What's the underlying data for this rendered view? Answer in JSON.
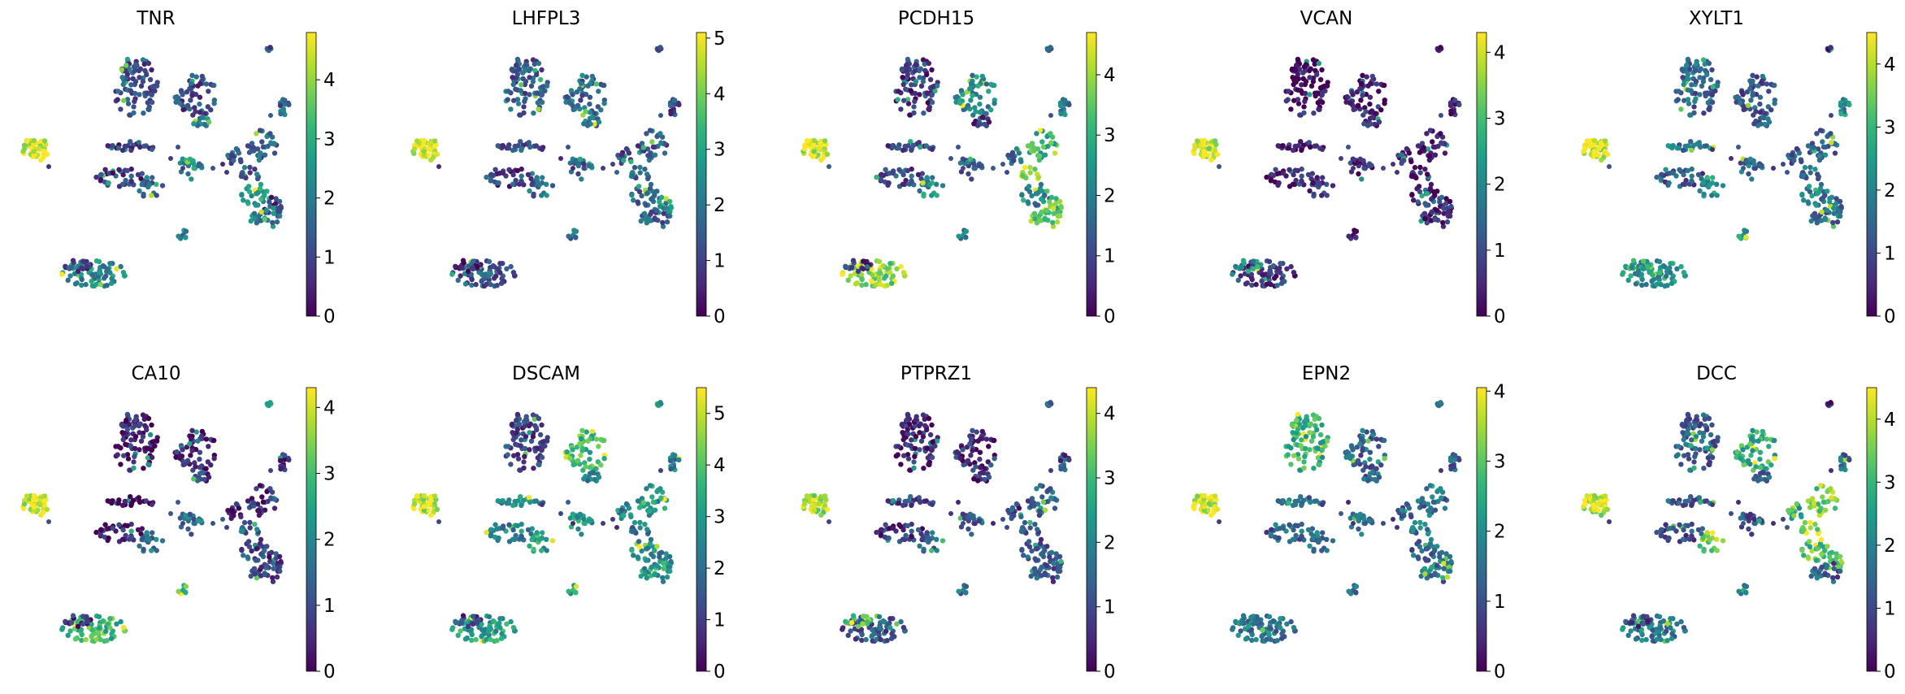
{
  "chart_data": [
    {
      "type": "scatter",
      "title": "TNR",
      "colorbar": {
        "min": 0,
        "max": 4.8,
        "ticks": [
          0,
          1,
          2,
          3,
          4
        ]
      },
      "cluster_values": [
        1.2,
        1.1,
        2.0,
        1.5,
        1.4,
        0.9,
        0.8,
        1.7,
        2.3,
        1.3,
        2.6,
        0.9,
        2.0,
        1.6,
        4.6,
        1.3,
        2.2,
        2.3,
        1.0
      ]
    },
    {
      "type": "scatter",
      "title": "LHFPL3",
      "colorbar": {
        "min": 0,
        "max": 5.1,
        "ticks": [
          0,
          1,
          2,
          3,
          4,
          5
        ]
      },
      "cluster_values": [
        1.5,
        1.8,
        2.0,
        1.4,
        1.5,
        1.2,
        1.0,
        1.8,
        1.6,
        1.2,
        1.7,
        2.6,
        1.6,
        1.1,
        4.9,
        1.5,
        1.7,
        1.4,
        0.3
      ]
    },
    {
      "type": "scatter",
      "title": "PCDH15",
      "colorbar": {
        "min": 0,
        "max": 4.7,
        "ticks": [
          0,
          1,
          2,
          3,
          4
        ]
      },
      "cluster_values": [
        0.8,
        2.2,
        0.9,
        3.0,
        4.2,
        1.0,
        1.1,
        2.4,
        1.5,
        1.6,
        1.9,
        3.2,
        3.8,
        1.9,
        4.4,
        1.2,
        2.3,
        3.9,
        0.7
      ]
    },
    {
      "type": "scatter",
      "title": "VCAN",
      "colorbar": {
        "min": 0,
        "max": 4.3,
        "ticks": [
          0,
          1,
          2,
          3,
          4
        ]
      },
      "cluster_values": [
        0.1,
        0.4,
        0.8,
        0.2,
        0.3,
        0.4,
        0.3,
        0.7,
        0.5,
        0.5,
        0.5,
        0.4,
        0.4,
        0.3,
        3.8,
        0.4,
        0.2,
        0.8,
        2.3
      ]
    },
    {
      "type": "scatter",
      "title": "XYLT1",
      "colorbar": {
        "min": 0,
        "max": 4.5,
        "ticks": [
          0,
          1,
          2,
          3,
          4
        ]
      },
      "cluster_values": [
        1.5,
        1.2,
        1.3,
        1.6,
        1.6,
        1.8,
        1.1,
        2.3,
        1.5,
        1.4,
        1.9,
        1.7,
        1.6,
        2.2,
        4.2,
        0.8,
        2.6,
        2.4,
        2.6
      ]
    },
    {
      "type": "scatter",
      "title": "CA10",
      "colorbar": {
        "min": 0,
        "max": 4.3,
        "ticks": [
          0,
          1,
          2,
          3,
          4
        ]
      },
      "cluster_values": [
        0.4,
        0.4,
        0.8,
        0.5,
        1.3,
        0.3,
        0.3,
        1.7,
        1.6,
        0.6,
        0.9,
        0.8,
        0.9,
        0.4,
        4.0,
        2.1,
        3.1,
        2.9,
        0.5
      ]
    },
    {
      "type": "scatter",
      "title": "DSCAM",
      "colorbar": {
        "min": 0,
        "max": 5.5,
        "ticks": [
          0,
          1,
          2,
          3,
          4,
          5
        ]
      },
      "cluster_values": [
        1.2,
        3.8,
        2.6,
        2.8,
        2.2,
        2.4,
        2.4,
        3.1,
        2.9,
        2.5,
        2.8,
        2.5,
        2.9,
        2.4,
        5.1,
        3.4,
        3.0,
        3.1,
        1.1
      ]
    },
    {
      "type": "scatter",
      "title": "PTPRZ1",
      "colorbar": {
        "min": 0,
        "max": 4.4,
        "ticks": [
          0,
          1,
          2,
          3,
          4
        ]
      },
      "cluster_values": [
        0.5,
        0.6,
        0.5,
        1.4,
        1.4,
        1.0,
        0.6,
        1.3,
        1.3,
        0.8,
        1.2,
        1.3,
        1.1,
        1.0,
        3.9,
        1.3,
        1.7,
        1.2,
        3.2
      ]
    },
    {
      "type": "scatter",
      "title": "EPN2",
      "colorbar": {
        "min": 0,
        "max": 4.05,
        "ticks": [
          0,
          1,
          2,
          3,
          4
        ]
      },
      "cluster_values": [
        2.6,
        1.3,
        1.4,
        1.3,
        1.5,
        1.2,
        1.3,
        1.4,
        1.4,
        1.3,
        1.3,
        1.6,
        1.5,
        1.2,
        3.8,
        1.4,
        1.3,
        1.6,
        1.8
      ]
    },
    {
      "type": "scatter",
      "title": "DCC",
      "colorbar": {
        "min": 0,
        "max": 4.5,
        "ticks": [
          0,
          1,
          2,
          3,
          4
        ]
      },
      "cluster_values": [
        1.4,
        2.8,
        1.6,
        3.5,
        3.8,
        1.1,
        1.0,
        3.6,
        1.2,
        2.7,
        3.3,
        3.6,
        1.3,
        1.6,
        4.1,
        0.7,
        1.4,
        1.8,
        0.9
      ]
    }
  ],
  "colors": {
    "viridis": [
      "#440154",
      "#482878",
      "#3e4989",
      "#31688e",
      "#26828e",
      "#1f9e89",
      "#35b779",
      "#6ece58",
      "#b5de2b",
      "#fde725"
    ]
  }
}
